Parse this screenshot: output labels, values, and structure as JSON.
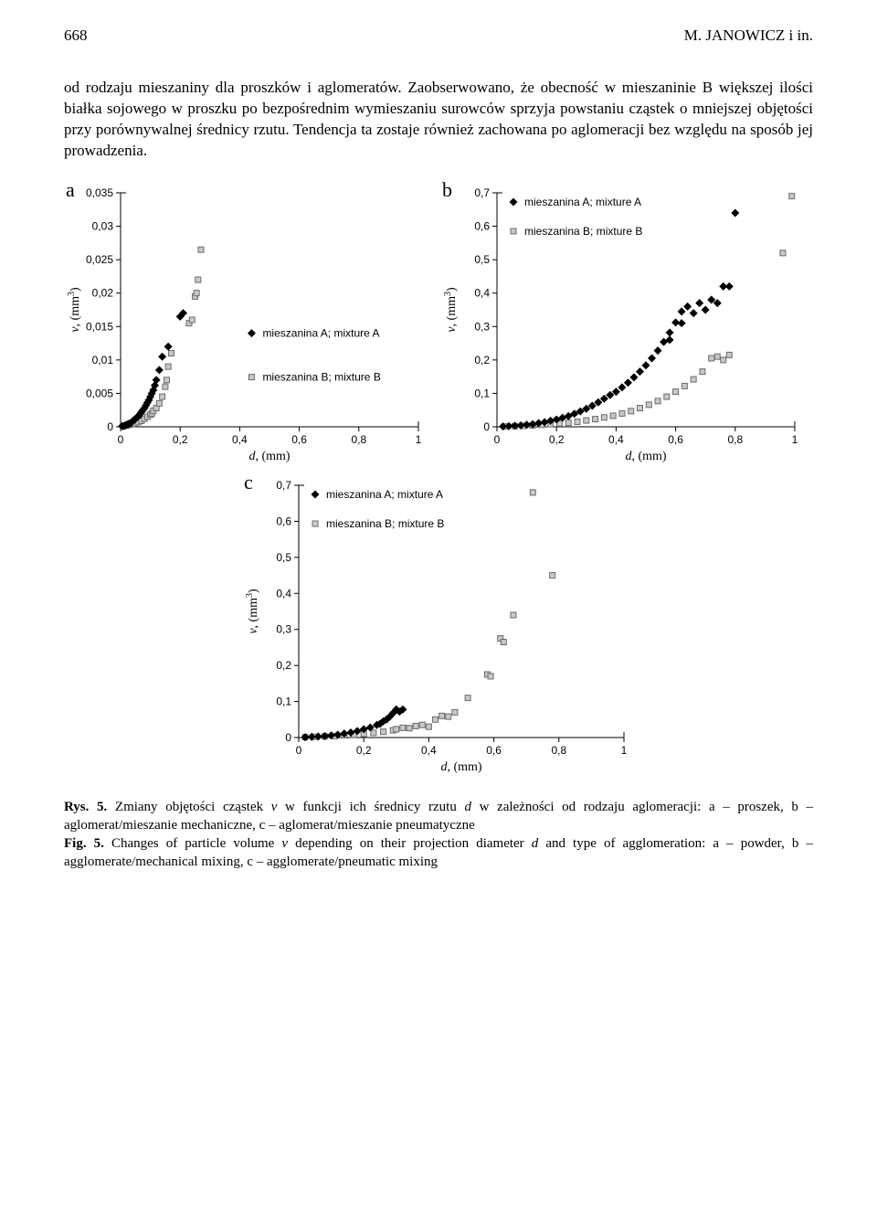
{
  "header": {
    "page_number": "668",
    "running_title": "M. JANOWICZ i in."
  },
  "paragraph": "od rodzaju mieszaniny dla proszków i aglomeratów. Zaobserwowano, że obecność w mieszaninie B większej ilości białka sojowego w proszku po bezpośrednim wymieszaniu surowców sprzyja powstaniu cząstek o mniejszej objętości przy porównywalnej średnicy rzutu. Tendencja ta zostaje również zachowana po aglomeracji bez względu na sposób jej prowadzenia.",
  "legend": {
    "a": "mieszanina A; mixture A",
    "b": "mieszanina B; mixture B"
  },
  "axis": {
    "x_label_pre": "d",
    "x_unit": ", (mm)",
    "y_label_pre": "v",
    "y_unit": ", (mm",
    "y_unit_sup": "3",
    "y_unit_post": ")"
  },
  "panel_labels": {
    "a": "a",
    "b": "b",
    "c": "c"
  },
  "chart_a": {
    "type": "scatter",
    "xlim": [
      0,
      1
    ],
    "ylim": [
      0,
      0.035
    ],
    "xticks": [
      0,
      0.2,
      0.4,
      0.6,
      0.8,
      1
    ],
    "xtick_labels": [
      "0",
      "0,2",
      "0,4",
      "0,6",
      "0,8",
      "1"
    ],
    "yticks": [
      0,
      0.005,
      0.01,
      0.015,
      0.02,
      0.025,
      0.03,
      0.035
    ],
    "ytick_labels": [
      "0",
      "0,005",
      "0,01",
      "0,015",
      "0,02",
      "0,025",
      "0,03",
      "0,035"
    ],
    "series_a_color": "#000000",
    "series_b_fill": "#c8c8c8",
    "series_b_stroke": "#6b6b6b",
    "marker_size": 6,
    "border_color": "#000000",
    "tick_color": "#000000",
    "background": "#ffffff",
    "series_a": [
      [
        0.005,
        0.0001
      ],
      [
        0.01,
        0.0001
      ],
      [
        0.015,
        0.0002
      ],
      [
        0.02,
        0.0003
      ],
      [
        0.025,
        0.0004
      ],
      [
        0.03,
        0.0005
      ],
      [
        0.035,
        0.0006
      ],
      [
        0.04,
        0.0008
      ],
      [
        0.045,
        0.001
      ],
      [
        0.05,
        0.0012
      ],
      [
        0.055,
        0.0014
      ],
      [
        0.06,
        0.0016
      ],
      [
        0.065,
        0.0019
      ],
      [
        0.07,
        0.0022
      ],
      [
        0.075,
        0.0025
      ],
      [
        0.08,
        0.0028
      ],
      [
        0.085,
        0.0032
      ],
      [
        0.09,
        0.0036
      ],
      [
        0.095,
        0.004
      ],
      [
        0.1,
        0.0045
      ],
      [
        0.105,
        0.005
      ],
      [
        0.11,
        0.0055
      ],
      [
        0.115,
        0.0062
      ],
      [
        0.12,
        0.007
      ],
      [
        0.13,
        0.0085
      ],
      [
        0.14,
        0.0105
      ],
      [
        0.16,
        0.012
      ],
      [
        0.2,
        0.0165
      ],
      [
        0.21,
        0.017
      ]
    ],
    "series_b": [
      [
        0.01,
        0.0001
      ],
      [
        0.02,
        0.0002
      ],
      [
        0.03,
        0.0003
      ],
      [
        0.04,
        0.0004
      ],
      [
        0.05,
        0.0005
      ],
      [
        0.06,
        0.0007
      ],
      [
        0.07,
        0.0009
      ],
      [
        0.08,
        0.0012
      ],
      [
        0.09,
        0.0015
      ],
      [
        0.1,
        0.0018
      ],
      [
        0.105,
        0.002
      ],
      [
        0.11,
        0.0024
      ],
      [
        0.12,
        0.0028
      ],
      [
        0.13,
        0.0035
      ],
      [
        0.14,
        0.0045
      ],
      [
        0.15,
        0.006
      ],
      [
        0.155,
        0.007
      ],
      [
        0.16,
        0.009
      ],
      [
        0.17,
        0.011
      ],
      [
        0.23,
        0.0155
      ],
      [
        0.24,
        0.016
      ],
      [
        0.25,
        0.0195
      ],
      [
        0.255,
        0.02
      ],
      [
        0.26,
        0.022
      ],
      [
        0.27,
        0.0265
      ]
    ],
    "legend_pos": "inside-right-mid"
  },
  "chart_b": {
    "type": "scatter",
    "xlim": [
      0,
      1
    ],
    "ylim": [
      0,
      0.7
    ],
    "xticks": [
      0,
      0.2,
      0.4,
      0.6,
      0.8,
      1
    ],
    "xtick_labels": [
      "0",
      "0,2",
      "0,4",
      "0,6",
      "0,8",
      "1"
    ],
    "yticks": [
      0,
      0.1,
      0.2,
      0.3,
      0.4,
      0.5,
      0.6,
      0.7
    ],
    "ytick_labels": [
      "0",
      "0,1",
      "0,2",
      "0,3",
      "0,4",
      "0,5",
      "0,6",
      "0,7"
    ],
    "series_a_color": "#000000",
    "series_b_fill": "#c8c8c8",
    "series_b_stroke": "#6b6b6b",
    "marker_size": 6,
    "border_color": "#000000",
    "tick_color": "#000000",
    "background": "#ffffff",
    "series_a": [
      [
        0.02,
        0.001
      ],
      [
        0.04,
        0.002
      ],
      [
        0.06,
        0.003
      ],
      [
        0.08,
        0.004
      ],
      [
        0.1,
        0.006
      ],
      [
        0.12,
        0.008
      ],
      [
        0.14,
        0.011
      ],
      [
        0.16,
        0.014
      ],
      [
        0.18,
        0.018
      ],
      [
        0.2,
        0.022
      ],
      [
        0.22,
        0.027
      ],
      [
        0.24,
        0.032
      ],
      [
        0.26,
        0.039
      ],
      [
        0.28,
        0.046
      ],
      [
        0.3,
        0.054
      ],
      [
        0.32,
        0.063
      ],
      [
        0.34,
        0.073
      ],
      [
        0.36,
        0.084
      ],
      [
        0.38,
        0.095
      ],
      [
        0.4,
        0.105
      ],
      [
        0.42,
        0.118
      ],
      [
        0.44,
        0.132
      ],
      [
        0.46,
        0.148
      ],
      [
        0.48,
        0.165
      ],
      [
        0.5,
        0.184
      ],
      [
        0.52,
        0.205
      ],
      [
        0.54,
        0.228
      ],
      [
        0.56,
        0.254
      ],
      [
        0.58,
        0.282
      ],
      [
        0.6,
        0.312
      ],
      [
        0.62,
        0.345
      ],
      [
        0.64,
        0.36
      ],
      [
        0.66,
        0.34
      ],
      [
        0.68,
        0.37
      ],
      [
        0.7,
        0.35
      ],
      [
        0.72,
        0.38
      ],
      [
        0.74,
        0.37
      ],
      [
        0.76,
        0.42
      ],
      [
        0.8,
        0.64
      ],
      [
        0.78,
        0.42
      ],
      [
        0.62,
        0.31
      ],
      [
        0.58,
        0.26
      ]
    ],
    "series_b": [
      [
        0.03,
        0.001
      ],
      [
        0.06,
        0.002
      ],
      [
        0.09,
        0.003
      ],
      [
        0.12,
        0.004
      ],
      [
        0.15,
        0.006
      ],
      [
        0.18,
        0.008
      ],
      [
        0.21,
        0.01
      ],
      [
        0.24,
        0.012
      ],
      [
        0.27,
        0.015
      ],
      [
        0.3,
        0.019
      ],
      [
        0.33,
        0.023
      ],
      [
        0.36,
        0.028
      ],
      [
        0.39,
        0.033
      ],
      [
        0.42,
        0.04
      ],
      [
        0.45,
        0.047
      ],
      [
        0.48,
        0.056
      ],
      [
        0.51,
        0.066
      ],
      [
        0.54,
        0.077
      ],
      [
        0.57,
        0.09
      ],
      [
        0.6,
        0.105
      ],
      [
        0.63,
        0.122
      ],
      [
        0.66,
        0.142
      ],
      [
        0.69,
        0.165
      ],
      [
        0.72,
        0.205
      ],
      [
        0.74,
        0.21
      ],
      [
        0.76,
        0.2
      ],
      [
        0.78,
        0.215
      ],
      [
        0.96,
        0.52
      ],
      [
        0.99,
        0.69
      ]
    ],
    "legend_pos": "inside-top-left"
  },
  "chart_c": {
    "type": "scatter",
    "xlim": [
      0,
      1
    ],
    "ylim": [
      0,
      0.7
    ],
    "xticks": [
      0,
      0.2,
      0.4,
      0.6,
      0.8,
      1
    ],
    "xtick_labels": [
      "0",
      "0,2",
      "0,4",
      "0,6",
      "0,8",
      "1"
    ],
    "yticks": [
      0,
      0.1,
      0.2,
      0.3,
      0.4,
      0.5,
      0.6,
      0.7
    ],
    "ytick_labels": [
      "0",
      "0,1",
      "0,2",
      "0,3",
      "0,4",
      "0,5",
      "0,6",
      "0,7"
    ],
    "series_a_color": "#000000",
    "series_b_fill": "#c8c8c8",
    "series_b_stroke": "#6b6b6b",
    "marker_size": 6,
    "border_color": "#000000",
    "tick_color": "#000000",
    "background": "#ffffff",
    "series_a": [
      [
        0.02,
        0.001
      ],
      [
        0.04,
        0.002
      ],
      [
        0.06,
        0.003
      ],
      [
        0.08,
        0.004
      ],
      [
        0.1,
        0.006
      ],
      [
        0.12,
        0.008
      ],
      [
        0.14,
        0.011
      ],
      [
        0.16,
        0.014
      ],
      [
        0.18,
        0.018
      ],
      [
        0.2,
        0.023
      ],
      [
        0.22,
        0.028
      ],
      [
        0.24,
        0.035
      ],
      [
        0.25,
        0.038
      ],
      [
        0.26,
        0.045
      ],
      [
        0.27,
        0.05
      ],
      [
        0.28,
        0.058
      ],
      [
        0.29,
        0.068
      ],
      [
        0.3,
        0.078
      ],
      [
        0.31,
        0.072
      ],
      [
        0.32,
        0.078
      ]
    ],
    "series_b": [
      [
        0.02,
        0.001
      ],
      [
        0.05,
        0.002
      ],
      [
        0.08,
        0.003
      ],
      [
        0.11,
        0.004
      ],
      [
        0.14,
        0.006
      ],
      [
        0.17,
        0.008
      ],
      [
        0.2,
        0.01
      ],
      [
        0.23,
        0.013
      ],
      [
        0.26,
        0.016
      ],
      [
        0.29,
        0.02
      ],
      [
        0.3,
        0.023
      ],
      [
        0.32,
        0.027
      ],
      [
        0.34,
        0.026
      ],
      [
        0.36,
        0.032
      ],
      [
        0.38,
        0.035
      ],
      [
        0.4,
        0.03
      ],
      [
        0.42,
        0.05
      ],
      [
        0.44,
        0.06
      ],
      [
        0.46,
        0.058
      ],
      [
        0.48,
        0.07
      ],
      [
        0.52,
        0.11
      ],
      [
        0.58,
        0.175
      ],
      [
        0.59,
        0.17
      ],
      [
        0.62,
        0.275
      ],
      [
        0.63,
        0.265
      ],
      [
        0.66,
        0.34
      ],
      [
        0.78,
        0.45
      ],
      [
        0.72,
        0.68
      ]
    ],
    "legend_pos": "inside-top-left"
  },
  "caption": {
    "rys_label": "Rys. 5.",
    "rys_text_pre": " Zmiany objętości cząstek ",
    "rys_v": "v",
    "rys_text_mid1": " w funkcji ich średnicy rzutu ",
    "rys_d": "d",
    "rys_text_post": " w zależności od rodzaju aglomeracji: a – proszek, b – aglomerat/mieszanie mechaniczne, c – aglomerat/mieszanie pneumatyczne",
    "fig_label": "Fig. 5.",
    "fig_text_pre": " Changes of particle volume ",
    "fig_v": "v",
    "fig_text_mid1": " depending on  their projection diameter ",
    "fig_d": "d",
    "fig_text_post": " and type of agglomeration: a – powder, b – agglomerate/mechanical mixing, c – agglomerate/pneumatic mixing"
  }
}
